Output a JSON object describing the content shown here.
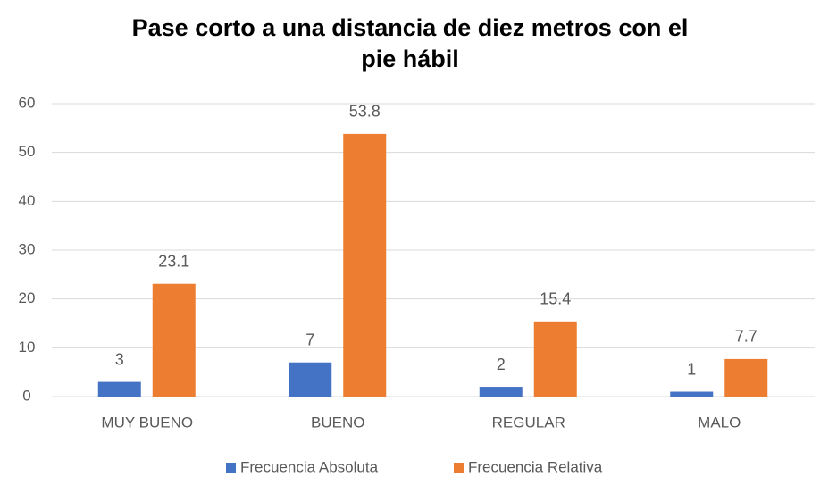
{
  "chart_data": {
    "type": "bar",
    "title": [
      "Pase corto a una distancia de diez metros con el",
      "pie hábil"
    ],
    "categories": [
      "MUY BUENO",
      "BUENO",
      "REGULAR",
      "MALO"
    ],
    "series": [
      {
        "name": "Frecuencia Absoluta",
        "color": "#4472c4",
        "values": [
          3,
          7,
          2,
          1
        ]
      },
      {
        "name": "Frecuencia Relativa",
        "color": "#ed7d31",
        "values": [
          23.1,
          53.8,
          15.4,
          7.7
        ]
      }
    ],
    "ylim": [
      0,
      60
    ],
    "yticks": [
      0,
      10,
      20,
      30,
      40,
      50,
      60
    ],
    "grid": true,
    "legend": "bottom"
  }
}
